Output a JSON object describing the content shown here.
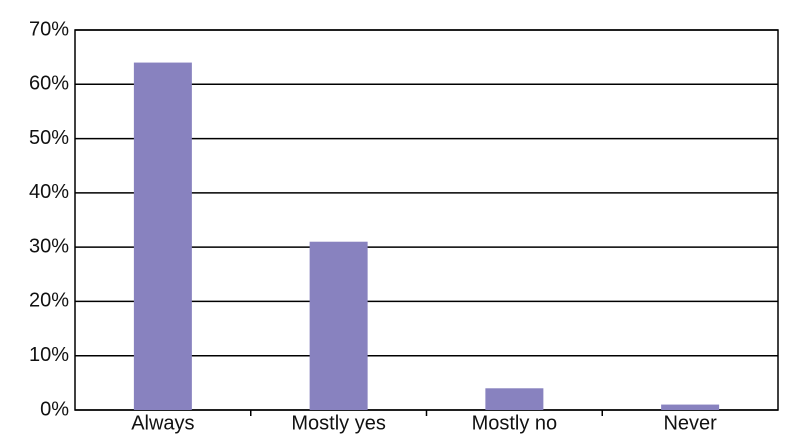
{
  "chart_data": {
    "type": "bar",
    "categories": [
      "Always",
      "Mostly yes",
      "Mostly no",
      "Never"
    ],
    "values": [
      64,
      31,
      4,
      1
    ],
    "color": "#8882bf",
    "ylim": [
      0,
      70
    ],
    "yticks": [
      {
        "value": 0,
        "label": "0%"
      },
      {
        "value": 10,
        "label": "10%"
      },
      {
        "value": 20,
        "label": "20%"
      },
      {
        "value": 30,
        "label": "30%"
      },
      {
        "value": 40,
        "label": "40%"
      },
      {
        "value": 50,
        "label": "50%"
      },
      {
        "value": 60,
        "label": "60%"
      },
      {
        "value": 70,
        "label": "70%"
      }
    ],
    "grid": true
  }
}
